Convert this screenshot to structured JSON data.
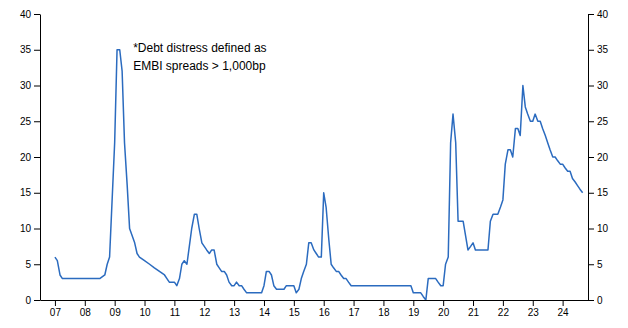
{
  "chart_data": {
    "type": "line",
    "annotation": "*Debt distress defined as\nEMBI spreads > 1,000bp",
    "color": "#2B6BBF",
    "xlim": [
      2006.5,
      2024.85
    ],
    "xticks": [
      {
        "value": 2007,
        "label": "07"
      },
      {
        "value": 2008,
        "label": "08"
      },
      {
        "value": 2009,
        "label": "09"
      },
      {
        "value": 2010,
        "label": "10"
      },
      {
        "value": 2011,
        "label": "11"
      },
      {
        "value": 2012,
        "label": "12"
      },
      {
        "value": 2013,
        "label": "13"
      },
      {
        "value": 2014,
        "label": "14"
      },
      {
        "value": 2015,
        "label": "15"
      },
      {
        "value": 2016,
        "label": "16"
      },
      {
        "value": 2017,
        "label": "17"
      },
      {
        "value": 2018,
        "label": "18"
      },
      {
        "value": 2019,
        "label": "19"
      },
      {
        "value": 2020,
        "label": "20"
      },
      {
        "value": 2021,
        "label": "21"
      },
      {
        "value": 2022,
        "label": "22"
      },
      {
        "value": 2023,
        "label": "23"
      },
      {
        "value": 2024,
        "label": "24"
      }
    ],
    "ylim": [
      0,
      40
    ],
    "yticks": [
      0,
      5,
      10,
      15,
      20,
      25,
      30,
      35,
      40
    ],
    "y2lim": [
      0,
      40
    ],
    "y2ticks": [
      0,
      5,
      10,
      15,
      20,
      25,
      30,
      35,
      40
    ],
    "grid": false,
    "x": [
      2007.0,
      2007.08,
      2007.17,
      2007.25,
      2007.5,
      2007.75,
      2008.0,
      2008.17,
      2008.33,
      2008.5,
      2008.67,
      2008.75,
      2008.83,
      2009.0,
      2009.08,
      2009.17,
      2009.25,
      2009.33,
      2009.42,
      2009.5,
      2009.67,
      2009.75,
      2009.83,
      2010.0,
      2010.17,
      2010.33,
      2010.5,
      2010.67,
      2010.75,
      2010.83,
      2011.0,
      2011.08,
      2011.17,
      2011.25,
      2011.33,
      2011.42,
      2011.5,
      2011.58,
      2011.67,
      2011.75,
      2011.83,
      2011.92,
      2012.0,
      2012.08,
      2012.17,
      2012.25,
      2012.33,
      2012.42,
      2012.5,
      2012.58,
      2012.67,
      2012.75,
      2012.83,
      2012.92,
      2013.0,
      2013.08,
      2013.17,
      2013.25,
      2013.33,
      2013.42,
      2013.5,
      2013.58,
      2013.67,
      2013.75,
      2013.83,
      2013.92,
      2014.0,
      2014.08,
      2014.17,
      2014.25,
      2014.33,
      2014.42,
      2014.5,
      2014.58,
      2014.67,
      2014.75,
      2014.83,
      2014.92,
      2015.0,
      2015.08,
      2015.17,
      2015.25,
      2015.33,
      2015.42,
      2015.5,
      2015.58,
      2015.67,
      2015.75,
      2015.83,
      2015.92,
      2016.0,
      2016.08,
      2016.17,
      2016.25,
      2016.33,
      2016.42,
      2016.5,
      2016.58,
      2016.67,
      2016.75,
      2016.83,
      2016.92,
      2017.0,
      2017.17,
      2017.33,
      2017.5,
      2017.67,
      2017.75,
      2017.83,
      2017.92,
      2018.0,
      2018.17,
      2018.33,
      2018.5,
      2018.67,
      2018.75,
      2018.83,
      2018.92,
      2019.0,
      2019.17,
      2019.25,
      2019.33,
      2019.42,
      2019.5,
      2019.58,
      2019.67,
      2019.75,
      2019.83,
      2019.92,
      2020.0,
      2020.08,
      2020.17,
      2020.25,
      2020.33,
      2020.42,
      2020.5,
      2020.58,
      2020.67,
      2020.75,
      2020.83,
      2020.92,
      2021.0,
      2021.08,
      2021.17,
      2021.25,
      2021.33,
      2021.42,
      2021.5,
      2021.58,
      2021.67,
      2021.75,
      2021.83,
      2021.92,
      2022.0,
      2022.08,
      2022.17,
      2022.25,
      2022.33,
      2022.42,
      2022.5,
      2022.58,
      2022.67,
      2022.75,
      2022.83,
      2022.92,
      2023.0,
      2023.08,
      2023.17,
      2023.25,
      2023.33,
      2023.42,
      2023.5,
      2023.58,
      2023.67,
      2023.75,
      2023.83,
      2023.92,
      2024.0,
      2024.08,
      2024.17,
      2024.25,
      2024.33,
      2024.42,
      2024.5,
      2024.58,
      2024.67
    ],
    "values": [
      6.0,
      5.5,
      3.5,
      3.0,
      3.0,
      3.0,
      3.0,
      3.0,
      3.0,
      3.0,
      3.5,
      5.0,
      6.0,
      22.0,
      35.0,
      35.0,
      32.0,
      22.0,
      16.0,
      10.0,
      8.0,
      6.5,
      6.0,
      5.5,
      5.0,
      4.5,
      4.0,
      3.5,
      3.0,
      2.5,
      2.5,
      2.0,
      3.0,
      5.0,
      5.5,
      5.0,
      7.5,
      10.0,
      12.0,
      12.0,
      10.0,
      8.0,
      7.5,
      7.0,
      6.5,
      7.0,
      7.0,
      5.0,
      4.5,
      4.0,
      4.0,
      3.5,
      2.5,
      2.0,
      2.0,
      2.5,
      2.0,
      2.0,
      1.5,
      1.0,
      1.0,
      1.0,
      1.0,
      1.0,
      1.0,
      1.0,
      2.0,
      4.0,
      4.0,
      3.5,
      2.0,
      1.5,
      1.5,
      1.5,
      1.5,
      2.0,
      2.0,
      2.0,
      2.0,
      1.0,
      1.5,
      3.0,
      4.0,
      5.0,
      8.0,
      8.0,
      7.0,
      6.5,
      6.0,
      6.0,
      15.0,
      13.0,
      8.5,
      5.0,
      4.5,
      4.0,
      4.0,
      3.5,
      3.0,
      3.0,
      2.5,
      2.0,
      2.0,
      2.0,
      2.0,
      2.0,
      2.0,
      2.0,
      2.0,
      2.0,
      2.0,
      2.0,
      2.0,
      2.0,
      2.0,
      2.0,
      2.0,
      2.0,
      1.0,
      1.0,
      1.0,
      0.5,
      0.0,
      3.0,
      3.0,
      3.0,
      3.0,
      2.5,
      2.0,
      2.0,
      5.0,
      6.0,
      22.0,
      26.0,
      22.0,
      11.0,
      11.0,
      11.0,
      9.0,
      7.0,
      7.5,
      8.0,
      7.0,
      7.0,
      7.0,
      7.0,
      7.0,
      7.0,
      11.0,
      12.0,
      12.0,
      12.0,
      13.0,
      14.0,
      19.0,
      21.0,
      21.0,
      20.0,
      24.0,
      24.0,
      23.0,
      30.0,
      27.0,
      26.0,
      25.0,
      25.0,
      26.0,
      25.0,
      25.0,
      24.0,
      23.0,
      22.0,
      21.0,
      20.0,
      20.0,
      19.5,
      19.0,
      19.0,
      18.5,
      18.0,
      18.0,
      17.0,
      16.5,
      16.0,
      15.5,
      15.0
    ]
  }
}
